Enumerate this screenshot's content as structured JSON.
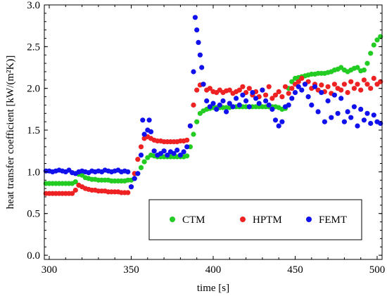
{
  "chart_data": {
    "type": "scatter",
    "xlabel": "time   [s]",
    "ylabel": "heat transfer coefficient   [kW/(m²K)]",
    "xlim": [
      297,
      503
    ],
    "ylim": [
      -0.05,
      3.0
    ],
    "xticks": [
      "300",
      "350",
      "400",
      "450",
      "500"
    ],
    "yticks": [
      "0.0",
      "0.5",
      "1.0",
      "1.5",
      "2.0",
      "2.5",
      "3.0"
    ],
    "grid": false,
    "legend_position": "bottom-right",
    "colors": {
      "CTM": "#22cc22",
      "HPTM": "#ee2222",
      "FEMT": "#1111ee"
    },
    "series": [
      {
        "name": "CTM",
        "color": "#22cc22",
        "points": [
          [
            298,
            0.86
          ],
          [
            300,
            0.86
          ],
          [
            302,
            0.86
          ],
          [
            304,
            0.86
          ],
          [
            306,
            0.86
          ],
          [
            308,
            0.86
          ],
          [
            310,
            0.86
          ],
          [
            312,
            0.86
          ],
          [
            314,
            0.86
          ],
          [
            316,
            0.88
          ],
          [
            318,
            0.97
          ],
          [
            319,
            0.98
          ],
          [
            320,
            0.96
          ],
          [
            322,
            0.93
          ],
          [
            324,
            0.92
          ],
          [
            326,
            0.91
          ],
          [
            328,
            0.91
          ],
          [
            330,
            0.9
          ],
          [
            332,
            0.9
          ],
          [
            334,
            0.9
          ],
          [
            336,
            0.9
          ],
          [
            338,
            0.89
          ],
          [
            340,
            0.89
          ],
          [
            342,
            0.89
          ],
          [
            344,
            0.89
          ],
          [
            346,
            0.89
          ],
          [
            348,
            0.9
          ],
          [
            350,
            0.9
          ],
          [
            352,
            0.92
          ],
          [
            354,
            0.98
          ],
          [
            356,
            1.05
          ],
          [
            358,
            1.12
          ],
          [
            360,
            1.17
          ],
          [
            362,
            1.2
          ],
          [
            364,
            1.19
          ],
          [
            366,
            1.18
          ],
          [
            368,
            1.18
          ],
          [
            370,
            1.18
          ],
          [
            372,
            1.18
          ],
          [
            374,
            1.18
          ],
          [
            376,
            1.18
          ],
          [
            378,
            1.18
          ],
          [
            380,
            1.18
          ],
          [
            382,
            1.18
          ],
          [
            384,
            1.19
          ],
          [
            386,
            1.3
          ],
          [
            388,
            1.45
          ],
          [
            390,
            1.6
          ],
          [
            392,
            1.7
          ],
          [
            394,
            1.73
          ],
          [
            396,
            1.75
          ],
          [
            398,
            1.76
          ],
          [
            400,
            1.77
          ],
          [
            402,
            1.77
          ],
          [
            404,
            1.77
          ],
          [
            406,
            1.77
          ],
          [
            408,
            1.77
          ],
          [
            410,
            1.77
          ],
          [
            412,
            1.78
          ],
          [
            414,
            1.78
          ],
          [
            416,
            1.78
          ],
          [
            418,
            1.78
          ],
          [
            420,
            1.78
          ],
          [
            422,
            1.78
          ],
          [
            424,
            1.78
          ],
          [
            426,
            1.78
          ],
          [
            428,
            1.78
          ],
          [
            430,
            1.78
          ],
          [
            432,
            1.78
          ],
          [
            434,
            1.78
          ],
          [
            436,
            1.78
          ],
          [
            438,
            1.78
          ],
          [
            440,
            1.77
          ],
          [
            442,
            1.75
          ],
          [
            444,
            1.76
          ],
          [
            446,
            2.0
          ],
          [
            448,
            2.08
          ],
          [
            450,
            2.12
          ],
          [
            452,
            2.13
          ],
          [
            454,
            2.14
          ],
          [
            456,
            2.15
          ],
          [
            458,
            2.16
          ],
          [
            460,
            2.17
          ],
          [
            462,
            2.17
          ],
          [
            464,
            2.18
          ],
          [
            466,
            2.18
          ],
          [
            468,
            2.18
          ],
          [
            470,
            2.19
          ],
          [
            472,
            2.2
          ],
          [
            474,
            2.22
          ],
          [
            476,
            2.23
          ],
          [
            478,
            2.25
          ],
          [
            480,
            2.22
          ],
          [
            482,
            2.2
          ],
          [
            484,
            2.22
          ],
          [
            486,
            2.24
          ],
          [
            488,
            2.25
          ],
          [
            490,
            2.21
          ],
          [
            492,
            2.22
          ],
          [
            494,
            2.3
          ],
          [
            496,
            2.42
          ],
          [
            498,
            2.52
          ],
          [
            500,
            2.58
          ],
          [
            502,
            2.62
          ]
        ]
      },
      {
        "name": "HPTM",
        "color": "#ee2222",
        "points": [
          [
            298,
            0.74
          ],
          [
            300,
            0.74
          ],
          [
            302,
            0.74
          ],
          [
            304,
            0.74
          ],
          [
            306,
            0.74
          ],
          [
            308,
            0.74
          ],
          [
            310,
            0.74
          ],
          [
            312,
            0.74
          ],
          [
            314,
            0.74
          ],
          [
            316,
            0.78
          ],
          [
            318,
            0.84
          ],
          [
            320,
            0.82
          ],
          [
            322,
            0.8
          ],
          [
            324,
            0.79
          ],
          [
            326,
            0.78
          ],
          [
            328,
            0.78
          ],
          [
            330,
            0.77
          ],
          [
            332,
            0.77
          ],
          [
            334,
            0.77
          ],
          [
            336,
            0.76
          ],
          [
            338,
            0.76
          ],
          [
            340,
            0.76
          ],
          [
            342,
            0.76
          ],
          [
            344,
            0.75
          ],
          [
            346,
            0.75
          ],
          [
            348,
            0.75
          ],
          [
            350,
            0.82
          ],
          [
            352,
            0.98
          ],
          [
            354,
            1.15
          ],
          [
            356,
            1.3
          ],
          [
            358,
            1.4
          ],
          [
            360,
            1.42
          ],
          [
            362,
            1.4
          ],
          [
            364,
            1.38
          ],
          [
            366,
            1.37
          ],
          [
            368,
            1.37
          ],
          [
            370,
            1.36
          ],
          [
            372,
            1.36
          ],
          [
            374,
            1.36
          ],
          [
            376,
            1.36
          ],
          [
            378,
            1.36
          ],
          [
            380,
            1.37
          ],
          [
            382,
            1.37
          ],
          [
            384,
            1.38
          ],
          [
            386,
            1.55
          ],
          [
            388,
            1.8
          ],
          [
            390,
            1.98
          ],
          [
            392,
            2.04
          ],
          [
            394,
            2.05
          ],
          [
            396,
            1.98
          ],
          [
            398,
            2.0
          ],
          [
            400,
            1.96
          ],
          [
            402,
            1.95
          ],
          [
            404,
            1.98
          ],
          [
            406,
            1.95
          ],
          [
            408,
            1.97
          ],
          [
            410,
            1.98
          ],
          [
            412,
            1.94
          ],
          [
            414,
            1.96
          ],
          [
            416,
            1.98
          ],
          [
            418,
            2.02
          ],
          [
            420,
            1.95
          ],
          [
            422,
            2.0
          ],
          [
            424,
            1.92
          ],
          [
            426,
            1.96
          ],
          [
            428,
            1.9
          ],
          [
            430,
            1.98
          ],
          [
            432,
            1.92
          ],
          [
            434,
            2.02
          ],
          [
            436,
            1.88
          ],
          [
            438,
            1.92
          ],
          [
            440,
            1.96
          ],
          [
            442,
            1.9
          ],
          [
            444,
            2.02
          ],
          [
            446,
            1.94
          ],
          [
            448,
            2.0
          ],
          [
            450,
            2.05
          ],
          [
            452,
            2.08
          ],
          [
            454,
            2.12
          ],
          [
            456,
            2.05
          ],
          [
            458,
            2.08
          ],
          [
            460,
            2.0
          ],
          [
            462,
            2.05
          ],
          [
            464,
            1.98
          ],
          [
            466,
            2.04
          ],
          [
            468,
            1.96
          ],
          [
            470,
            2.02
          ],
          [
            472,
            1.94
          ],
          [
            474,
            2.05
          ],
          [
            476,
            2.0
          ],
          [
            478,
            1.98
          ],
          [
            480,
            2.05
          ],
          [
            482,
            1.95
          ],
          [
            484,
            2.08
          ],
          [
            486,
            2.0
          ],
          [
            488,
            2.05
          ],
          [
            490,
            1.98
          ],
          [
            492,
            2.1
          ],
          [
            494,
            2.05
          ],
          [
            496,
            2.0
          ],
          [
            498,
            2.12
          ],
          [
            500,
            2.05
          ],
          [
            502,
            2.08
          ]
        ]
      },
      {
        "name": "FEMT",
        "color": "#1111ee",
        "points": [
          [
            298,
            1.01
          ],
          [
            300,
            1.01
          ],
          [
            302,
            1.0
          ],
          [
            304,
            1.01
          ],
          [
            306,
            1.02
          ],
          [
            308,
            1.01
          ],
          [
            310,
            1.0
          ],
          [
            312,
            1.02
          ],
          [
            314,
            0.99
          ],
          [
            316,
            0.98
          ],
          [
            318,
            1.0
          ],
          [
            320,
            1.01
          ],
          [
            322,
            1.0
          ],
          [
            324,
            0.99
          ],
          [
            326,
            1.01
          ],
          [
            328,
            1.0
          ],
          [
            330,
            1.01
          ],
          [
            332,
            1.0
          ],
          [
            334,
            1.02
          ],
          [
            336,
            1.01
          ],
          [
            338,
            1.0
          ],
          [
            340,
            1.01
          ],
          [
            342,
            1.02
          ],
          [
            344,
            1.0
          ],
          [
            346,
            1.01
          ],
          [
            348,
            1.0
          ],
          [
            350,
            0.82
          ],
          [
            352,
            0.92
          ],
          [
            354,
            0.98
          ],
          [
            356,
            1.2
          ],
          [
            357,
            1.62
          ],
          [
            358,
            1.45
          ],
          [
            360,
            1.5
          ],
          [
            361,
            1.62
          ],
          [
            362,
            1.48
          ],
          [
            364,
            1.25
          ],
          [
            366,
            1.2
          ],
          [
            368,
            1.22
          ],
          [
            370,
            1.25
          ],
          [
            372,
            1.2
          ],
          [
            374,
            1.24
          ],
          [
            376,
            1.22
          ],
          [
            378,
            1.26
          ],
          [
            380,
            1.2
          ],
          [
            382,
            1.24
          ],
          [
            384,
            1.3
          ],
          [
            386,
            1.55
          ],
          [
            388,
            2.2
          ],
          [
            389,
            2.85
          ],
          [
            390,
            2.7
          ],
          [
            391,
            2.55
          ],
          [
            392,
            2.4
          ],
          [
            393,
            2.25
          ],
          [
            394,
            2.05
          ],
          [
            396,
            1.85
          ],
          [
            398,
            1.78
          ],
          [
            400,
            1.82
          ],
          [
            402,
            1.75
          ],
          [
            404,
            1.8
          ],
          [
            406,
            1.85
          ],
          [
            408,
            1.72
          ],
          [
            410,
            1.82
          ],
          [
            412,
            1.78
          ],
          [
            414,
            1.88
          ],
          [
            416,
            1.8
          ],
          [
            418,
            1.92
          ],
          [
            420,
            1.85
          ],
          [
            422,
            1.78
          ],
          [
            424,
            1.95
          ],
          [
            426,
            1.88
          ],
          [
            428,
            1.82
          ],
          [
            430,
            1.98
          ],
          [
            432,
            1.85
          ],
          [
            434,
            1.8
          ],
          [
            436,
            1.75
          ],
          [
            438,
            1.62
          ],
          [
            440,
            1.55
          ],
          [
            442,
            1.6
          ],
          [
            444,
            1.78
          ],
          [
            446,
            1.8
          ],
          [
            448,
            1.88
          ],
          [
            450,
            1.95
          ],
          [
            452,
            2.02
          ],
          [
            454,
            1.98
          ],
          [
            456,
            2.05
          ],
          [
            458,
            1.9
          ],
          [
            460,
            1.8
          ],
          [
            462,
            2.02
          ],
          [
            464,
            1.72
          ],
          [
            466,
            1.95
          ],
          [
            468,
            1.6
          ],
          [
            470,
            1.85
          ],
          [
            472,
            1.65
          ],
          [
            474,
            1.92
          ],
          [
            476,
            1.7
          ],
          [
            478,
            1.88
          ],
          [
            480,
            1.6
          ],
          [
            482,
            1.72
          ],
          [
            484,
            1.65
          ],
          [
            486,
            1.78
          ],
          [
            488,
            1.55
          ],
          [
            490,
            1.75
          ],
          [
            492,
            1.62
          ],
          [
            494,
            1.7
          ],
          [
            496,
            1.58
          ],
          [
            498,
            1.68
          ],
          [
            500,
            1.6
          ],
          [
            502,
            1.58
          ]
        ]
      }
    ]
  }
}
